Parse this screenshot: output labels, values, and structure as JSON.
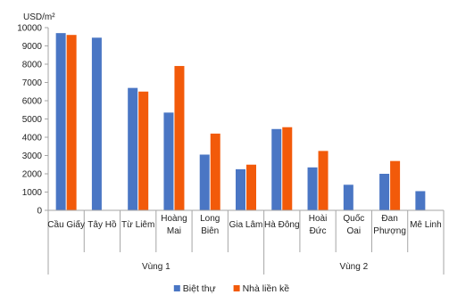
{
  "chart_data": {
    "type": "bar",
    "unit_label": "USD/m²",
    "ylim": [
      0,
      10000
    ],
    "yticks": [
      0,
      1000,
      2000,
      3000,
      4000,
      5000,
      6000,
      7000,
      8000,
      9000,
      10000
    ],
    "grid": false,
    "legend_position": "bottom",
    "categories": [
      "Cầu Giấy",
      "Tây Hồ",
      "Từ Liêm",
      "Hoàng Mai",
      "Long Biên",
      "Gia Lâm",
      "Hà Đông",
      "Hoài Đức",
      "Quốc Oai",
      "Đan Phượng",
      "Mê Linh"
    ],
    "category_lines": [
      [
        "Cầu Giấy"
      ],
      [
        "Tây Hồ"
      ],
      [
        "Từ Liêm"
      ],
      [
        "Hoàng",
        "Mai"
      ],
      [
        "Long",
        "Biên"
      ],
      [
        "Gia Lâm"
      ],
      [
        "Hà Đông"
      ],
      [
        "Hoài",
        "Đức"
      ],
      [
        "Quốc",
        "Oai"
      ],
      [
        "Đan",
        "Phượng"
      ],
      [
        "Mê Linh"
      ]
    ],
    "groups": [
      {
        "label": "Vùng 1",
        "start": 0,
        "end": 5
      },
      {
        "label": "Vùng 2",
        "start": 6,
        "end": 10
      }
    ],
    "series": [
      {
        "name": "Biệt thự",
        "color": "#4a76c4",
        "values": [
          9700,
          9450,
          6700,
          5350,
          3050,
          2250,
          4450,
          2350,
          1400,
          2000,
          1050
        ]
      },
      {
        "name": "Nhà liền kề",
        "color": "#f25a0a",
        "values": [
          9600,
          null,
          6500,
          7900,
          4200,
          2500,
          4550,
          3250,
          null,
          2700,
          null
        ]
      }
    ]
  }
}
